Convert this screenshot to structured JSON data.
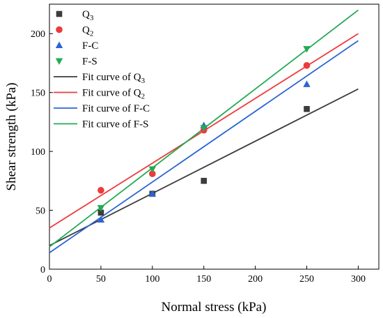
{
  "chart_data": {
    "type": "scatter",
    "xlabel": "Normal stress (kPa)",
    "ylabel": "Shear strength (kPa)",
    "xlim": [
      0,
      320
    ],
    "ylim": [
      0,
      225
    ],
    "xticks": [
      0,
      50,
      100,
      150,
      200,
      250,
      300
    ],
    "yticks": [
      0,
      50,
      100,
      150,
      200
    ],
    "grid": false,
    "legend_position": "top-left",
    "series": [
      {
        "id": "q3",
        "name_main": "Q",
        "name_sub": "3",
        "marker": "square",
        "color": "#3c3c3c",
        "x": [
          50,
          100,
          150,
          250
        ],
        "y": [
          48,
          64,
          75,
          136
        ]
      },
      {
        "id": "q2",
        "name_main": "Q",
        "name_sub": "2",
        "marker": "circle",
        "color": "#ee3a3a",
        "x": [
          50,
          100,
          150,
          250
        ],
        "y": [
          67,
          81,
          118,
          173
        ]
      },
      {
        "id": "fc",
        "name_main": "F-C",
        "name_sub": "",
        "marker": "triangle-up",
        "color": "#2b64d4",
        "x": [
          50,
          100,
          150,
          250
        ],
        "y": [
          42,
          64,
          122,
          157
        ]
      },
      {
        "id": "fs",
        "name_main": "F-S",
        "name_sub": "",
        "marker": "triangle-down",
        "color": "#22aa55",
        "x": [
          50,
          100,
          150,
          250
        ],
        "y": [
          52,
          85,
          120,
          187
        ]
      }
    ],
    "fits": [
      {
        "id": "fit-q3",
        "name_main": "Fit curve of Q",
        "name_sub": "3",
        "color": "#3c3c3c",
        "x": [
          0,
          300
        ],
        "y": [
          20,
          153
        ]
      },
      {
        "id": "fit-q2",
        "name_main": "Fit curve of Q",
        "name_sub": "2",
        "color": "#ee3a3a",
        "x": [
          0,
          300
        ],
        "y": [
          35,
          200
        ]
      },
      {
        "id": "fit-fc",
        "name_main": "Fit curve of F-C",
        "name_sub": "",
        "color": "#2b64d4",
        "x": [
          0,
          300
        ],
        "y": [
          14,
          194
        ]
      },
      {
        "id": "fit-fs",
        "name_main": "Fit curve of F-S",
        "name_sub": "",
        "color": "#22aa55",
        "x": [
          0,
          300
        ],
        "y": [
          19,
          220
        ]
      }
    ]
  }
}
